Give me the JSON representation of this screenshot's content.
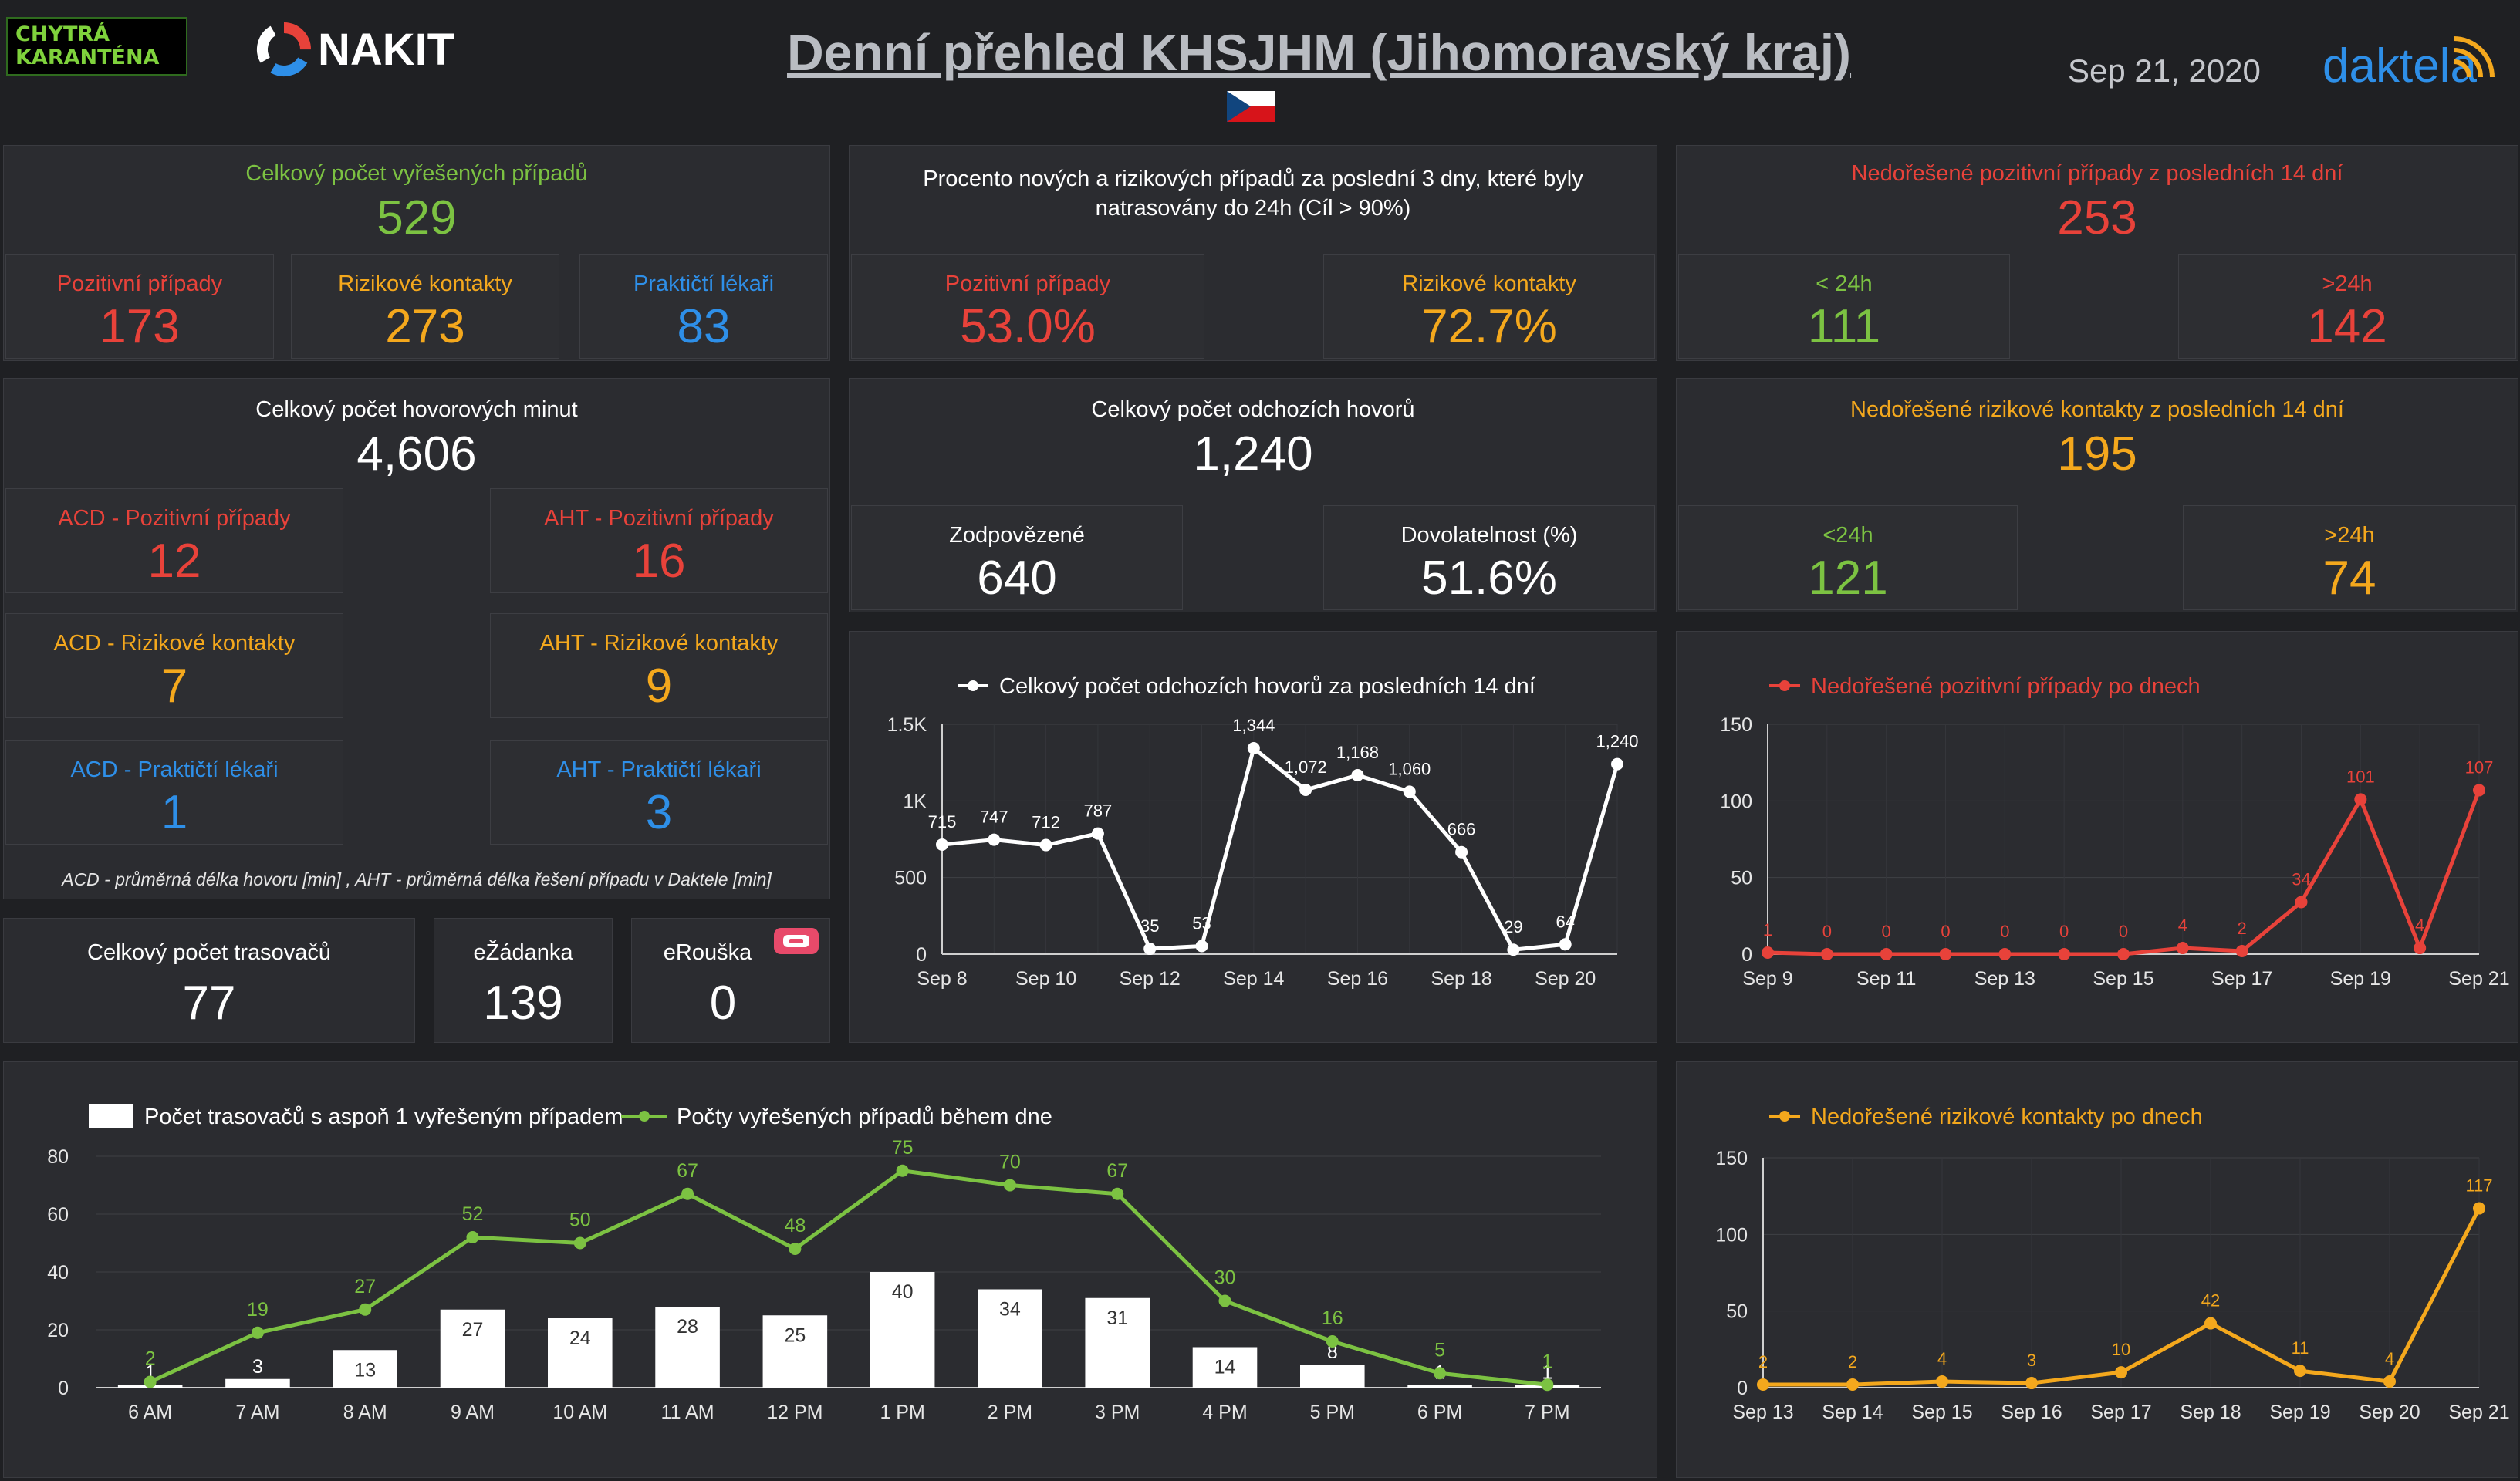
{
  "header": {
    "logo_chytra": "CHYTRÁ\nKARANTÉNA",
    "logo_nakit": "NAKIT",
    "title": "Denní přehled KHSJHM (Jihomoravský kraj)",
    "date": "Sep 21, 2020",
    "brand": "daktela",
    "flag_icon": "czech-flag-icon"
  },
  "resolved": {
    "title": "Celkový počet vyřešených případů",
    "total": "529",
    "positive_label": "Pozitivní případy",
    "positive": "173",
    "risk_label": "Rizikové kontakty",
    "risk": "273",
    "gp_label": "Praktičtí lékaři",
    "gp": "83"
  },
  "traced": {
    "title": "Procento nových a rizikových případů za poslední 3 dny, které byly natrasovány do 24h (Cíl > 90%)",
    "positive_label": "Pozitivní případy",
    "positive": "53.0%",
    "risk_label": "Rizikové kontakty",
    "risk": "72.7%"
  },
  "unresolved_pos": {
    "title": "Nedořešené pozitivní případy z posledních 14 dní",
    "total": "253",
    "lt_label": "< 24h",
    "lt": "111",
    "gt_label": ">24h",
    "gt": "142"
  },
  "minutes": {
    "title": "Celkový počet hovorových minut",
    "total": "4,606",
    "acd_pos_label": "ACD - Pozitivní případy",
    "acd_pos": "12",
    "aht_pos_label": "AHT - Pozitivní případy",
    "aht_pos": "16",
    "acd_risk_label": "ACD - Rizikové kontakty",
    "acd_risk": "7",
    "aht_risk_label": "AHT - Rizikové kontakty",
    "aht_risk": "9",
    "acd_gp_label": "ACD - Praktičtí lékaři",
    "acd_gp": "1",
    "aht_gp_label": "AHT - Praktičtí lékaři",
    "aht_gp": "3",
    "note": "ACD - průměrná délka hovoru [min] , AHT - průměrná délka řešení případu v Daktele [min]"
  },
  "calls": {
    "title": "Celkový počet odchozích hovorů",
    "total": "1,240",
    "answered_label": "Zodpovězené",
    "answered": "640",
    "reach_label": "Dovolatelnost (%)",
    "reach": "51.6%"
  },
  "unresolved_risk": {
    "title": "Nedořešené rizikové kontakty z posledních 14 dní",
    "total": "195",
    "lt_label": "<24h",
    "lt": "121",
    "gt_label": ">24h",
    "gt": "74"
  },
  "tracers": {
    "total_label": "Celkový počet trasovačů",
    "total": "77",
    "ezadanka_label": "eŽádanka",
    "ezadanka": "139",
    "erouska_label": "eRouška",
    "erouska": "0",
    "erouska_icon": "erouska-icon"
  },
  "chart_data": [
    {
      "id": "calls14",
      "type": "line",
      "title": "",
      "legend": "Celkový počet odchozích hovorů za posledních 14 dní",
      "x": [
        "Sep 8",
        "Sep 9",
        "Sep 10",
        "Sep 11",
        "Sep 12",
        "Sep 13",
        "Sep 14",
        "Sep 15",
        "Sep 16",
        "Sep 17",
        "Sep 18",
        "Sep 19",
        "Sep 20",
        "Sep 21"
      ],
      "x_ticks": [
        "Sep 8",
        "Sep 10",
        "Sep 12",
        "Sep 14",
        "Sep 16",
        "Sep 18",
        "Sep 20"
      ],
      "values": [
        715,
        747,
        712,
        787,
        35,
        53,
        1344,
        1072,
        1168,
        1060,
        666,
        29,
        64,
        1240
      ],
      "value_labels": [
        "715",
        "747",
        "712",
        "787",
        "35",
        "53",
        "1,344",
        "1,072",
        "1,168",
        "1,060",
        "666",
        "29",
        "64",
        "1,240"
      ],
      "y_ticks": [
        "0",
        "500",
        "1K",
        "1.5K"
      ],
      "ylim": [
        0,
        1500
      ],
      "color": "#ffffff"
    },
    {
      "id": "pos_daily",
      "type": "line",
      "title": "",
      "legend": "Nedořešené pozitivní případy po dnech",
      "x": [
        "Sep 9",
        "Sep 10",
        "Sep 11",
        "Sep 12",
        "Sep 13",
        "Sep 14",
        "Sep 15",
        "Sep 16",
        "Sep 17",
        "Sep 18",
        "Sep 19",
        "Sep 20",
        "Sep 21"
      ],
      "x_ticks": [
        "Sep 9",
        "Sep 11",
        "Sep 13",
        "Sep 15",
        "Sep 17",
        "Sep 19",
        "Sep 21"
      ],
      "values": [
        1,
        0,
        0,
        0,
        0,
        0,
        0,
        4,
        2,
        34,
        101,
        4,
        107
      ],
      "value_labels": [
        "1",
        "0",
        "0",
        "0",
        "0",
        "0",
        "0",
        "4",
        "2",
        "34",
        "101",
        "4",
        "107"
      ],
      "y_ticks": [
        "0",
        "50",
        "100",
        "150"
      ],
      "ylim": [
        0,
        150
      ],
      "color": "#e8423a"
    },
    {
      "id": "risk_daily",
      "type": "line",
      "title": "",
      "legend": "Nedořešené rizikové kontakty po dnech",
      "x": [
        "Sep 13",
        "Sep 14",
        "Sep 15",
        "Sep 16",
        "Sep 17",
        "Sep 18",
        "Sep 19",
        "Sep 20",
        "Sep 21"
      ],
      "x_ticks": [
        "Sep 13",
        "Sep 14",
        "Sep 15",
        "Sep 16",
        "Sep 17",
        "Sep 18",
        "Sep 19",
        "Sep 20",
        "Sep 21"
      ],
      "values": [
        2,
        2,
        4,
        3,
        10,
        42,
        11,
        4,
        117
      ],
      "value_labels": [
        "2",
        "2",
        "4",
        "3",
        "10",
        "42",
        "11",
        "4",
        "117"
      ],
      "y_ticks": [
        "0",
        "50",
        "100",
        "150"
      ],
      "ylim": [
        0,
        150
      ],
      "color": "#f4a81d"
    },
    {
      "id": "hourly",
      "type": "bar",
      "title": "",
      "categories": [
        "6 AM",
        "7 AM",
        "8 AM",
        "9 AM",
        "10 AM",
        "11 AM",
        "12 PM",
        "1 PM",
        "2 PM",
        "3 PM",
        "4 PM",
        "5 PM",
        "6 PM",
        "7 PM"
      ],
      "series": [
        {
          "name": "Počet trasovačů s aspoň 1 vyřešeným případem",
          "type": "bar",
          "color": "#ffffff",
          "values": [
            1,
            3,
            13,
            27,
            24,
            28,
            25,
            40,
            34,
            31,
            14,
            8,
            1,
            1
          ]
        },
        {
          "name": "Počty vyřešených případů během dne",
          "type": "line",
          "color": "#7cc242",
          "values": [
            2,
            19,
            27,
            52,
            50,
            67,
            48,
            75,
            70,
            67,
            30,
            16,
            5,
            1
          ]
        }
      ],
      "y_ticks": [
        "0",
        "20",
        "40",
        "60",
        "80"
      ],
      "ylim": [
        0,
        80
      ]
    }
  ]
}
